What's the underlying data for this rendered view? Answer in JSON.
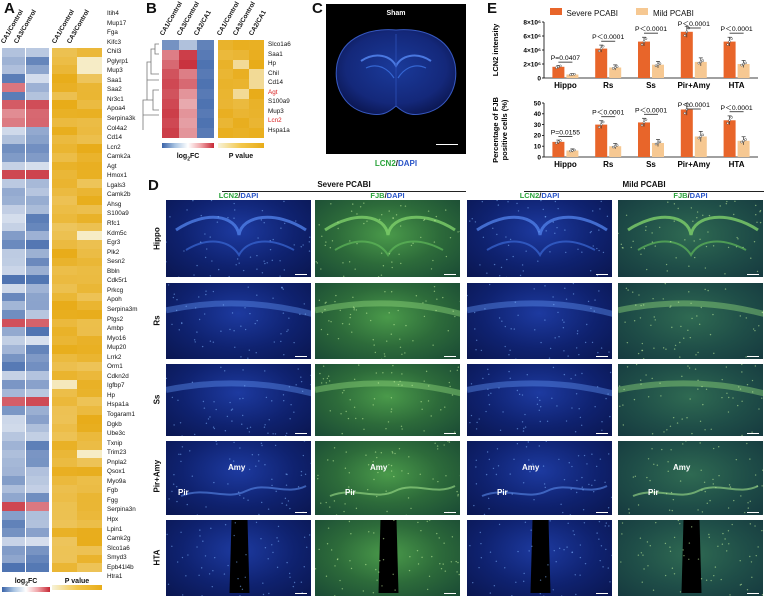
{
  "panel_letters": {
    "a": "A",
    "b": "B",
    "c": "C",
    "d": "D",
    "e": "E"
  },
  "panelA": {
    "col_heads": [
      "CA1/Control",
      "CA3/Control",
      "CA1/Control",
      "CA3/Control"
    ],
    "genes": [
      "Itih4",
      "Mup17",
      "Fga",
      "Kifc3",
      "Chil3",
      "Pglyrp1",
      "Mup3",
      "Saa1",
      "Saa2",
      "Nr3c1",
      "Apoa4",
      "Serpina3k",
      "Col4a2",
      "Cd14",
      "Lcn2",
      "Camk2a",
      "Agt",
      "Hmox1",
      "Lgals3",
      "Camk2b",
      "Ahsg",
      "S100a9",
      "Rfc1",
      "Kdm5c",
      "Egr3",
      "Plk2",
      "Sesn2",
      "Bbln",
      "Cdk5r1",
      "Prkcg",
      "Apoh",
      "Serpina3m",
      "Ptgs2",
      "Ambp",
      "Myo16",
      "Mup20",
      "Lrrk2",
      "Orm1",
      "Cdkn2d",
      "Igfbp7",
      "Hp",
      "Hspa1a",
      "Togaram1",
      "Dgkb",
      "Ube3c",
      "Txnip",
      "Trim23",
      "Pnpla2",
      "Qsox1",
      "Myo9a",
      "Fgb",
      "Fgg",
      "Serpina3n",
      "Hpx",
      "Lpin1",
      "Camk2g",
      "Slco1a6",
      "Smyd3",
      "Epb41l4b",
      "Htra1"
    ],
    "fc_label": "log",
    "fc_sub": "2",
    "fc_suffix": "FC",
    "p_label": "P value"
  },
  "panelB": {
    "col_heads": [
      "CA1/Control",
      "CA3/Control",
      "CA2/CA1",
      "CA1/Control",
      "CA3/Control",
      "CA2/CA1"
    ],
    "genes": [
      "Slco1a6",
      "Saa1",
      "Hp",
      "Chil",
      "Cd14",
      "Agt",
      "S100a9",
      "Mup3",
      "Lcn2",
      "Hspa1a"
    ],
    "highlight": [
      "Agt",
      "Lcn2"
    ],
    "fc_label": "log",
    "fc_sub": "2",
    "fc_suffix": "FC",
    "p_label": "P value"
  },
  "panelC": {
    "title": "Sham",
    "stain_a": "LCN2",
    "sep": "/",
    "stain_b": "DAPI"
  },
  "panelD": {
    "group1": "Severe PCABI",
    "group2": "Mild PCABI",
    "col_labels": [
      {
        "a": "LCN2",
        "b": "DAPI"
      },
      {
        "a": "FJB",
        "b": "DAPI"
      },
      {
        "a": "LCN2",
        "b": "DAPI"
      },
      {
        "a": "FJB",
        "b": "DAPI"
      }
    ],
    "rows": [
      "Hippo",
      "Rs",
      "Ss",
      "Pir+Amy",
      "HTA"
    ],
    "amy": "Amy",
    "pir": "Pir"
  },
  "panelE": {
    "legend": [
      {
        "name": "Severe PCABI",
        "color": "#e8652a"
      },
      {
        "name": "Mild PCABI",
        "color": "#f6c892"
      }
    ],
    "chart_data": [
      {
        "type": "bar",
        "ylabel": "LCN2 intensity",
        "yticks": [
          "0",
          "2×10⁶",
          "4×10⁶",
          "6×10⁶",
          "8×10⁶"
        ],
        "ylim": [
          0,
          8000000
        ],
        "categories": [
          "Hippo",
          "Rs",
          "Ss",
          "Pir+Amy",
          "HTA"
        ],
        "series": [
          {
            "name": "Severe PCABI",
            "values": [
              1600000,
              4200000,
              5200000,
              6600000,
              5200000
            ]
          },
          {
            "name": "Mild PCABI",
            "values": [
              500000,
              1500000,
              1900000,
              2300000,
              2000000
            ]
          }
        ],
        "pvalues": [
          "P=0.0407",
          "P＜0.0001",
          "P＜0.0001",
          "P＜0.0001",
          "P＜0.0001"
        ]
      },
      {
        "type": "bar",
        "ylabel": "Percentage of FJB positive cells (%)",
        "ylabel_line1": "Percentage of FJB",
        "ylabel_line2": "positive cells (%)",
        "yticks": [
          "0",
          "10",
          "20",
          "30",
          "40",
          "50"
        ],
        "ylim": [
          0,
          50
        ],
        "categories": [
          "Hippo",
          "Rs",
          "Ss",
          "Pir+Amy",
          "HTA"
        ],
        "series": [
          {
            "name": "Severe PCABI",
            "values": [
              14,
              30,
              32,
              44,
              34
            ]
          },
          {
            "name": "Mild PCABI",
            "values": [
              6,
              10,
              13,
              19,
              15
            ]
          }
        ],
        "pvalues": [
          "P=0.0155",
          "P＜0.0001",
          "P＜0.0001",
          "P＜0.0001",
          "P＜0.0001"
        ]
      }
    ]
  }
}
